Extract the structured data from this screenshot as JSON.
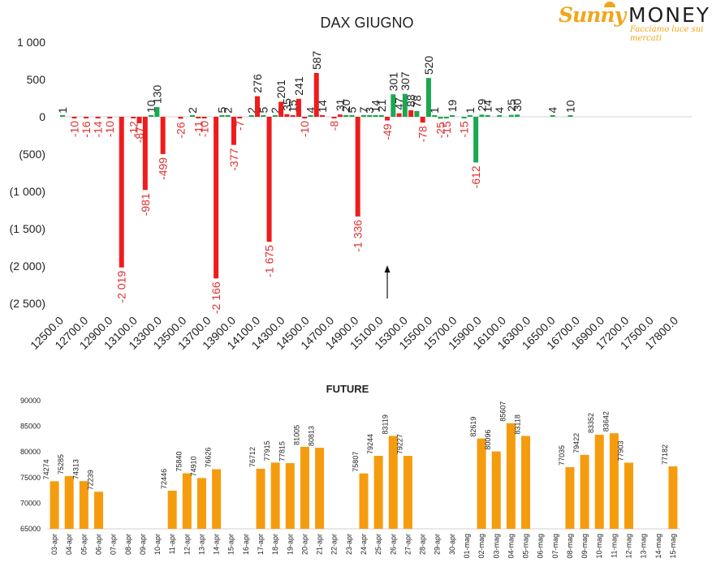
{
  "logo": {
    "brand_a": "Sunny",
    "brand_b": "MONEY",
    "tagline": "Facciamo luce sui mercati"
  },
  "colors": {
    "negative": "#ee1c1c",
    "positive": "#1aa851",
    "future": "#f59c0e",
    "neg_label": "#e03030",
    "pos_label": "#222222"
  },
  "chart_data": [
    {
      "type": "bar",
      "title": "DAX GIUGNO",
      "ylim": [
        -2500,
        1000
      ],
      "yticks": [
        1000,
        500,
        0,
        -500,
        -1000,
        -1500,
        -2000,
        -2500
      ],
      "ytick_labels": [
        "1 000",
        "500",
        "0",
        "(500)",
        "(1 000)",
        "(1 500)",
        "(2 000)",
        "(2 500)"
      ],
      "xtick_labels": [
        "12500.0",
        "12700.0",
        "12900.0",
        "13100.0",
        "13300.0",
        "13500.0",
        "13700.0",
        "13900.0",
        "14100.0",
        "14300.0",
        "14500.0",
        "14700.0",
        "14900.0",
        "15100.0",
        "15300.0",
        "15500.0",
        "15700.0",
        "15900.0",
        "16100.0",
        "16300.0",
        "16500.0",
        "16700.0",
        "16900.0",
        "17200.0",
        "17500.0",
        "17800.0"
      ],
      "bars": [
        {
          "s": 12500,
          "v": 1,
          "c": "g",
          "l": "1"
        },
        {
          "s": 12600,
          "v": -10,
          "c": "r",
          "l": "-10"
        },
        {
          "s": 12700,
          "v": -16,
          "c": "r",
          "l": "-16"
        },
        {
          "s": 12800,
          "v": -14,
          "c": "r",
          "l": "-14"
        },
        {
          "s": 12900,
          "v": -10,
          "c": "r",
          "l": "-10"
        },
        {
          "s": 13000,
          "v": -2019,
          "c": "r",
          "l": "-2 019"
        },
        {
          "s": 13100,
          "v": -12,
          "c": "r",
          "l": "-12"
        },
        {
          "s": 13150,
          "v": -87,
          "c": "r",
          "l": "-87"
        },
        {
          "s": 13200,
          "v": -981,
          "c": "r",
          "l": "-981"
        },
        {
          "s": 13250,
          "v": 10,
          "c": "g",
          "l": "10"
        },
        {
          "s": 13300,
          "v": 130,
          "c": "g",
          "l": "130"
        },
        {
          "s": 13350,
          "v": -499,
          "c": "r",
          "l": "-499"
        },
        {
          "s": 13500,
          "v": -26,
          "c": "r",
          "l": "-26"
        },
        {
          "s": 13600,
          "v": 2,
          "c": "g",
          "l": "2"
        },
        {
          "s": 13650,
          "v": -11,
          "c": "r",
          "l": "-11"
        },
        {
          "s": 13700,
          "v": -10,
          "c": "r",
          "l": "-10"
        },
        {
          "s": 13800,
          "v": -2166,
          "c": "r",
          "l": "-2 166"
        },
        {
          "s": 13850,
          "v": 5,
          "c": "g",
          "l": "5"
        },
        {
          "s": 13900,
          "v": 2,
          "c": "g",
          "l": "2"
        },
        {
          "s": 13950,
          "v": -377,
          "c": "r",
          "l": "-377"
        },
        {
          "s": 14000,
          "v": -7,
          "c": "r",
          "l": "-7"
        },
        {
          "s": 14100,
          "v": 2,
          "c": "g",
          "l": "2"
        },
        {
          "s": 14150,
          "v": 276,
          "c": "r",
          "l": "276"
        },
        {
          "s": 14200,
          "v": 5,
          "c": "g",
          "l": "5"
        },
        {
          "s": 14250,
          "v": -1675,
          "c": "r",
          "l": "-1 675"
        },
        {
          "s": 14300,
          "v": 2,
          "c": "g",
          "l": "2"
        },
        {
          "s": 14350,
          "v": 201,
          "c": "r",
          "l": "201"
        },
        {
          "s": 14400,
          "v": 35,
          "c": "r",
          "l": "35"
        },
        {
          "s": 14450,
          "v": 15,
          "c": "r",
          "l": "15"
        },
        {
          "s": 14500,
          "v": 241,
          "c": "r",
          "l": "241"
        },
        {
          "s": 14550,
          "v": -10,
          "c": "r",
          "l": "-10"
        },
        {
          "s": 14600,
          "v": 4,
          "c": "g",
          "l": "4"
        },
        {
          "s": 14650,
          "v": 587,
          "c": "r",
          "l": "587"
        },
        {
          "s": 14700,
          "v": 14,
          "c": "r",
          "l": "14"
        },
        {
          "s": 14800,
          "v": -8,
          "c": "r",
          "l": "-8"
        },
        {
          "s": 14850,
          "v": 31,
          "c": "r",
          "l": "31"
        },
        {
          "s": 14900,
          "v": 20,
          "c": "g",
          "l": "20"
        },
        {
          "s": 14950,
          "v": 5,
          "c": "g",
          "l": "5"
        },
        {
          "s": 15000,
          "v": -1336,
          "c": "r",
          "l": "-1 336"
        },
        {
          "s": 15050,
          "v": 7,
          "c": "g",
          "l": "7"
        },
        {
          "s": 15100,
          "v": 3,
          "c": "g",
          "l": "3"
        },
        {
          "s": 15150,
          "v": 14,
          "c": "g",
          "l": "14"
        },
        {
          "s": 15200,
          "v": 21,
          "c": "g",
          "l": "21"
        },
        {
          "s": 15250,
          "v": -49,
          "c": "r",
          "l": "-49"
        },
        {
          "s": 15300,
          "v": 301,
          "c": "g",
          "l": "301"
        },
        {
          "s": 15350,
          "v": 47,
          "c": "r",
          "l": "47"
        },
        {
          "s": 15400,
          "v": 307,
          "c": "g",
          "l": "307"
        },
        {
          "s": 15450,
          "v": 88,
          "c": "r",
          "l": "88"
        },
        {
          "s": 15500,
          "v": 78,
          "c": "g",
          "l": "78"
        },
        {
          "s": 15550,
          "v": -78,
          "c": "r",
          "l": "-78"
        },
        {
          "s": 15600,
          "v": 520,
          "c": "g",
          "l": "520"
        },
        {
          "s": 15650,
          "v": 1,
          "c": "g",
          "l": "1"
        },
        {
          "s": 15700,
          "v": -25,
          "c": "g",
          "l": "-25"
        },
        {
          "s": 15750,
          "v": -15,
          "c": "g",
          "l": "-15"
        },
        {
          "s": 15800,
          "v": 19,
          "c": "g",
          "l": "19"
        },
        {
          "s": 15900,
          "v": -15,
          "c": "g",
          "l": "-15"
        },
        {
          "s": 15950,
          "v": 1,
          "c": "g",
          "l": "1"
        },
        {
          "s": 16000,
          "v": -612,
          "c": "g",
          "l": "-612"
        },
        {
          "s": 16050,
          "v": 29,
          "c": "g",
          "l": "29"
        },
        {
          "s": 16100,
          "v": 14,
          "c": "g",
          "l": "14"
        },
        {
          "s": 16200,
          "v": 4,
          "c": "g",
          "l": "4"
        },
        {
          "s": 16300,
          "v": 25,
          "c": "g",
          "l": "25"
        },
        {
          "s": 16350,
          "v": 30,
          "c": "g",
          "l": "30"
        },
        {
          "s": 16650,
          "v": 4,
          "c": "g",
          "l": "4"
        },
        {
          "s": 16800,
          "v": 10,
          "c": "g",
          "l": "10"
        }
      ],
      "arrow_at_strike": 15250
    },
    {
      "type": "bar",
      "title": "FUTURE",
      "ylim": [
        65000,
        90000
      ],
      "yticks": [
        65000,
        70000,
        75000,
        80000,
        85000,
        90000
      ],
      "categories": [
        "03-apr",
        "04-apr",
        "05-apr",
        "06-apr",
        "07-apr",
        "08-apr",
        "09-apr",
        "10-apr",
        "11-apr",
        "12-apr",
        "13-apr",
        "14-apr",
        "15-apr",
        "16-apr",
        "17-apr",
        "18-apr",
        "19-apr",
        "20-apr",
        "21-apr",
        "22-apr",
        "23-apr",
        "24-apr",
        "25-apr",
        "26-apr",
        "27-apr",
        "28-apr",
        "29-apr",
        "30-apr",
        "01-mag",
        "02-mag",
        "03-mag",
        "04-mag",
        "05-mag",
        "06-mag",
        "07-mag",
        "08-mag",
        "09-mag",
        "10-mag",
        "11-mag",
        "12-mag",
        "13-mag",
        "14-mag",
        "15-mag"
      ],
      "values": [
        74274,
        75285,
        74313,
        72239,
        null,
        null,
        null,
        null,
        72446,
        75840,
        74910,
        76626,
        null,
        null,
        76712,
        77915,
        77815,
        81005,
        80813,
        null,
        null,
        75807,
        79244,
        83119,
        79227,
        null,
        null,
        null,
        null,
        82619,
        80096,
        85607,
        83118,
        null,
        null,
        77035,
        79422,
        83352,
        83642,
        77903,
        null,
        null,
        77182
      ]
    }
  ]
}
